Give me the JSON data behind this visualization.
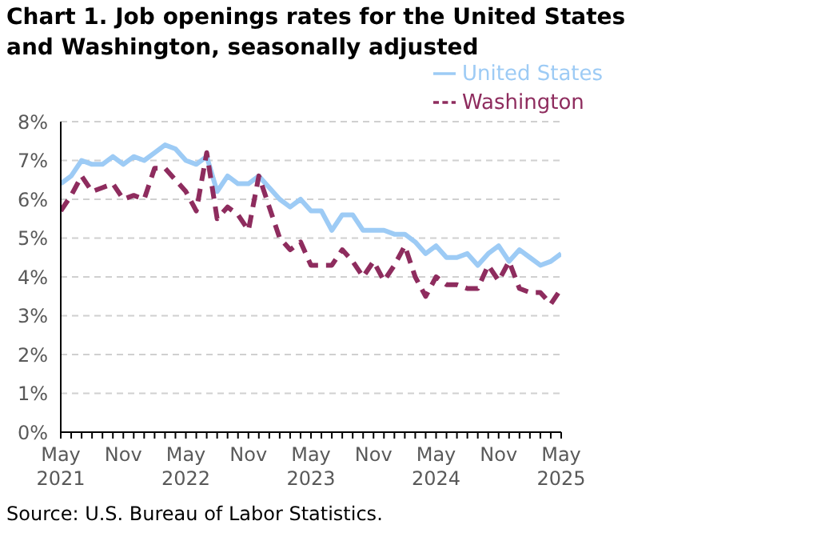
{
  "chart_data": {
    "type": "line",
    "title": "Chart 1. Job openings rates for the United States and Washington, seasonally adjusted",
    "categories": [
      "May 2021",
      null,
      null,
      null,
      null,
      null,
      "Nov",
      null,
      null,
      null,
      null,
      null,
      "May 2022",
      null,
      null,
      null,
      null,
      null,
      "Nov",
      null,
      null,
      null,
      null,
      null,
      "May 2023",
      null,
      null,
      null,
      null,
      null,
      "Nov",
      null,
      null,
      null,
      null,
      null,
      "May 2024",
      null,
      null,
      null,
      null,
      null,
      "Nov",
      null,
      null,
      null,
      null,
      null,
      "May 2025"
    ],
    "series": [
      {
        "name": "United States",
        "color": "#9dcbf5",
        "line_style": "solid",
        "values": [
          6.4,
          6.6,
          7.0,
          6.9,
          6.9,
          7.1,
          6.9,
          7.1,
          7.0,
          7.2,
          7.4,
          7.3,
          7.0,
          6.9,
          7.1,
          6.2,
          6.6,
          6.4,
          6.4,
          6.6,
          6.3,
          6.0,
          5.8,
          6.0,
          5.7,
          5.7,
          5.2,
          5.6,
          5.6,
          5.2,
          5.2,
          5.2,
          5.1,
          5.1,
          4.9,
          4.6,
          4.8,
          4.5,
          4.5,
          4.6,
          4.3,
          4.6,
          4.8,
          4.4,
          4.7,
          4.5,
          4.3,
          4.4,
          4.6
        ]
      },
      {
        "name": "Washington",
        "color": "#8e2c5e",
        "line_style": "dashed",
        "values": [
          5.7,
          6.1,
          6.6,
          6.2,
          6.3,
          6.4,
          6.0,
          6.1,
          6.0,
          6.8,
          6.8,
          6.5,
          6.2,
          5.7,
          7.2,
          5.5,
          5.8,
          5.6,
          5.2,
          6.6,
          5.8,
          5.0,
          4.7,
          4.9,
          4.3,
          4.3,
          4.3,
          4.7,
          4.4,
          4.0,
          4.4,
          3.9,
          4.3,
          4.8,
          4.0,
          3.5,
          4.0,
          3.8,
          3.8,
          3.7,
          3.7,
          4.3,
          3.9,
          4.4,
          3.7,
          3.6,
          3.6,
          3.3,
          3.7
        ]
      }
    ],
    "ylim": [
      0,
      8
    ],
    "yticks": [
      {
        "value": 0,
        "label": "0%"
      },
      {
        "value": 1,
        "label": "1%"
      },
      {
        "value": 2,
        "label": "2%"
      },
      {
        "value": 3,
        "label": "3%"
      },
      {
        "value": 4,
        "label": "4%"
      },
      {
        "value": 5,
        "label": "5%"
      },
      {
        "value": 6,
        "label": "6%"
      },
      {
        "value": 7,
        "label": "7%"
      },
      {
        "value": 8,
        "label": "8%"
      }
    ],
    "grid": "y",
    "legend": "top",
    "marker": "none",
    "annotations": [
      "Source: U.S. Bureau of Labor Statistics."
    ]
  }
}
